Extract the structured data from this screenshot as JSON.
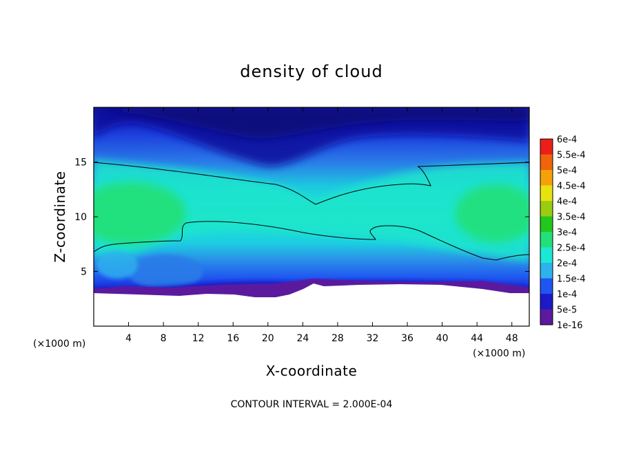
{
  "chart_data": {
    "type": "heatmap",
    "title": "density of cloud",
    "xlabel": "X-coordinate",
    "ylabel": "Z-coordinate",
    "x_unit": "(×1000 m)",
    "y_unit": "(×1000 m)",
    "xlim": [
      0,
      50
    ],
    "ylim": [
      0,
      20
    ],
    "x_ticks": [
      "4",
      "8",
      "12",
      "16",
      "20",
      "24",
      "28",
      "32",
      "36",
      "40",
      "44",
      "48"
    ],
    "y_ticks": [
      "5",
      "10",
      "15"
    ],
    "colorbar": {
      "levels": [
        "1e-16",
        "5e-5",
        "1e-4",
        "1.5e-4",
        "2e-4",
        "2.5e-4",
        "3e-4",
        "3.5e-4",
        "4e-4",
        "4.5e-4",
        "5e-4",
        "5.5e-4",
        "6e-4"
      ],
      "colors": [
        "#5b1a9e",
        "#1a1ac8",
        "#1f55f0",
        "#2db2ee",
        "#1ce8d6",
        "#23e07a",
        "#22c81c",
        "#9acd10",
        "#e8e210",
        "#f5a20a",
        "#f0640c",
        "#ee1f1a",
        "#f08a8a"
      ]
    },
    "contour_level": "2e-4",
    "footer": "CONTOUR INTERVAL = 2.000E-04",
    "grid": false
  }
}
